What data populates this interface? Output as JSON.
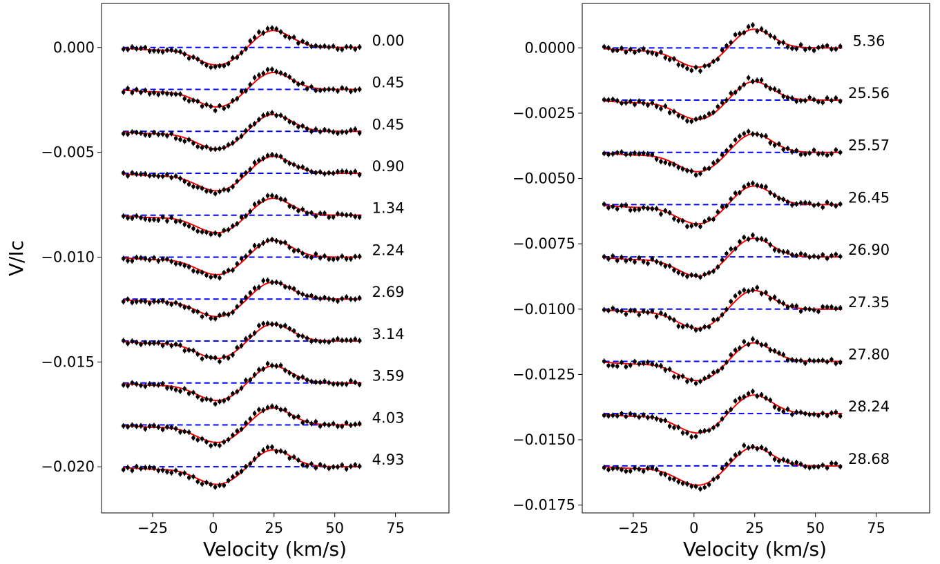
{
  "colors": {
    "model": "#ff0000",
    "observed": "#000000",
    "baseline": "#0000ff",
    "frame": "#000000",
    "background": "#ffffff"
  },
  "chart_data": [
    {
      "type": "line",
      "title": "",
      "xlabel": "Velocity (km/s)",
      "ylabel": "V/Ic",
      "xlim": [
        -46,
        97
      ],
      "ylim": [
        -0.0222,
        0.0021
      ],
      "xticks": [
        -25,
        0,
        25,
        50,
        75
      ],
      "xtick_labels": [
        "−25",
        "0",
        "25",
        "50",
        "75"
      ],
      "yticks": [
        0.0,
        -0.005,
        -0.01,
        -0.015,
        -0.02
      ],
      "ytick_labels": [
        "0.000",
        "−0.005",
        "−0.010",
        "−0.015",
        "−0.020"
      ],
      "profile_velocity_range": [
        -37,
        61
      ],
      "profile_spacing": -0.002,
      "model_shape": {
        "trough_velocity": 2,
        "peak_velocity": 24,
        "amplitude": 0.00085
      },
      "label_velocity": 72,
      "series": [
        {
          "name": "0.00",
          "offset": 0.0
        },
        {
          "name": "0.45",
          "offset": -0.002
        },
        {
          "name": "0.45",
          "offset": -0.004
        },
        {
          "name": "0.90",
          "offset": -0.006
        },
        {
          "name": "1.34",
          "offset": -0.008
        },
        {
          "name": "2.24",
          "offset": -0.01
        },
        {
          "name": "2.69",
          "offset": -0.012
        },
        {
          "name": "3.14",
          "offset": -0.014
        },
        {
          "name": "3.59",
          "offset": -0.016
        },
        {
          "name": "4.03",
          "offset": -0.018
        },
        {
          "name": "4.93",
          "offset": -0.02
        }
      ]
    },
    {
      "type": "line",
      "title": "",
      "xlabel": "Velocity (km/s)",
      "ylabel": "",
      "xlim": [
        -46,
        97
      ],
      "ylim": [
        -0.0178,
        0.0017
      ],
      "xticks": [
        -25,
        0,
        25,
        50,
        75
      ],
      "xtick_labels": [
        "−25",
        "0",
        "25",
        "50",
        "75"
      ],
      "yticks": [
        0.0,
        -0.0025,
        -0.005,
        -0.0075,
        -0.01,
        -0.0125,
        -0.015,
        -0.0175
      ],
      "ytick_labels": [
        "0.0000",
        "−0.0025",
        "−0.0050",
        "−0.0075",
        "−0.0100",
        "−0.0125",
        "−0.0150",
        "−0.0175"
      ],
      "profile_velocity_range": [
        -37,
        61
      ],
      "profile_spacing": -0.002,
      "model_shape": {
        "trough_velocity": 2,
        "peak_velocity": 24,
        "amplitude": 0.00075
      },
      "label_velocity": 72,
      "series": [
        {
          "name": "5.36",
          "offset": 0.0
        },
        {
          "name": "25.56",
          "offset": -0.002
        },
        {
          "name": "25.57",
          "offset": -0.004
        },
        {
          "name": "26.45",
          "offset": -0.006
        },
        {
          "name": "26.90",
          "offset": -0.008
        },
        {
          "name": "27.35",
          "offset": -0.01
        },
        {
          "name": "27.80",
          "offset": -0.012
        },
        {
          "name": "28.24",
          "offset": -0.014
        },
        {
          "name": "28.68",
          "offset": -0.016
        }
      ]
    }
  ]
}
